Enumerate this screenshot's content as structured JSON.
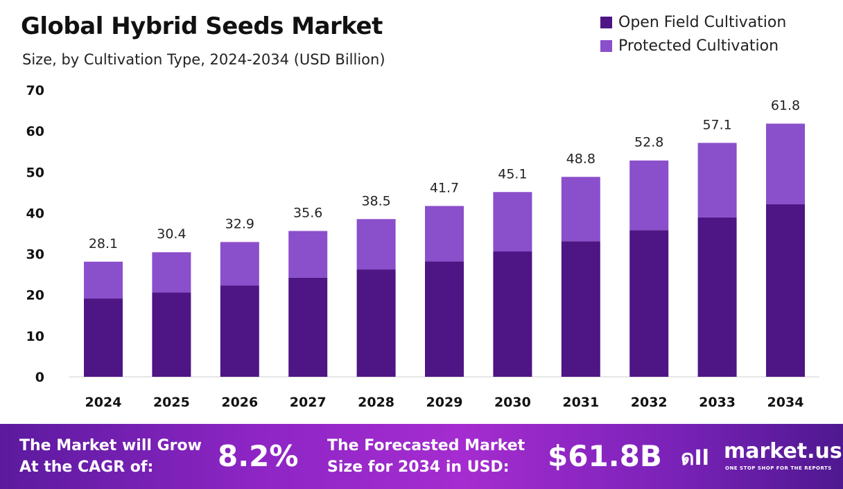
{
  "chart_data": {
    "type": "bar",
    "stacked": true,
    "title": "Global Hybrid Seeds Market",
    "subtitle": "Size, by Cultivation Type, 2024-2034 (USD Billion)",
    "categories": [
      "2024",
      "2025",
      "2026",
      "2027",
      "2028",
      "2029",
      "2030",
      "2031",
      "2032",
      "2033",
      "2034"
    ],
    "series": [
      {
        "name": "Open Field Cultivation",
        "color": "#4e1585",
        "values": [
          19.1,
          20.6,
          22.3,
          24.2,
          26.2,
          28.2,
          30.6,
          33.1,
          35.8,
          38.9,
          42.1
        ]
      },
      {
        "name": "Protected Cultivation",
        "color": "#8a4fcb",
        "values": [
          9.0,
          9.8,
          10.6,
          11.4,
          12.3,
          13.5,
          14.5,
          15.7,
          17.0,
          18.2,
          19.7
        ]
      }
    ],
    "totals": [
      "28.1",
      "30.4",
      "32.9",
      "35.6",
      "38.5",
      "41.7",
      "45.1",
      "48.8",
      "52.8",
      "57.1",
      "61.8"
    ],
    "ylim": [
      0,
      70
    ],
    "yticks": [
      "0",
      "10",
      "20",
      "30",
      "40",
      "50",
      "60",
      "70"
    ],
    "grid": false,
    "legend": "top-right"
  },
  "footer": {
    "cagr_label_1": "The Market will Grow",
    "cagr_label_2": "At the CAGR of:",
    "cagr_value": "8.2%",
    "forecast_label_1": "The Forecasted Market",
    "forecast_label_2": "Size for 2034 in USD:",
    "forecast_value": "$61.8B",
    "brand": "market.us",
    "tagline": "ONE STOP SHOP FOR THE REPORTS"
  }
}
